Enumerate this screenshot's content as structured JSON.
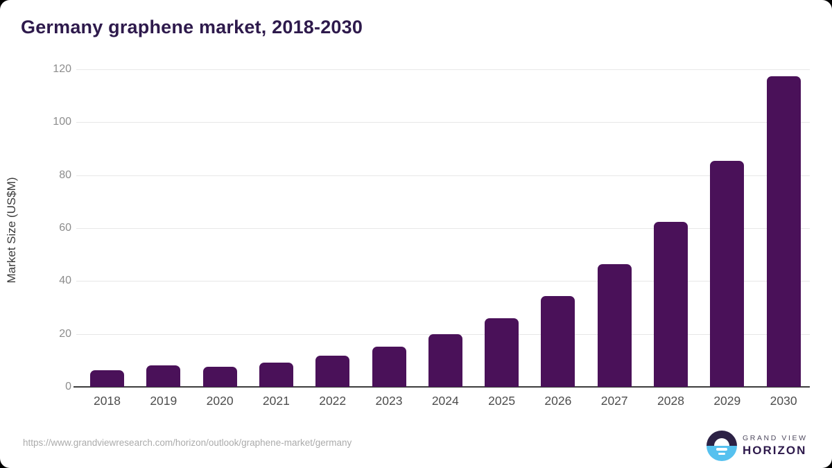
{
  "title": "Germany graphene market, 2018-2030",
  "colors": {
    "bar": "#4a1159",
    "title": "#2e1a4c",
    "grid": "#e7e7e7",
    "axis": "#3c3c3c",
    "tick_label": "#8c8c8c",
    "x_label": "#4d4d4d",
    "url": "#ababab",
    "logo_dark": "#2c2145",
    "logo_blue": "#56c1ef"
  },
  "chart_data": {
    "type": "bar",
    "title": "Germany graphene market, 2018-2030",
    "categories": [
      "2018",
      "2019",
      "2020",
      "2021",
      "2022",
      "2023",
      "2024",
      "2025",
      "2026",
      "2027",
      "2028",
      "2029",
      "2030"
    ],
    "values": [
      6.3,
      8.2,
      7.6,
      9.2,
      11.7,
      15.2,
      19.9,
      26.0,
      34.4,
      46.5,
      62.4,
      85.4,
      117.3
    ],
    "xlabel": "",
    "ylabel": "Market Size (US$M)",
    "ylim": [
      0,
      120
    ],
    "yticks": [
      0,
      20,
      40,
      60,
      80,
      100,
      120
    ],
    "grid": true,
    "legend_position": "none",
    "bar_color": "#4a1159"
  },
  "footer": {
    "source_url": "https://www.grandviewresearch.com/horizon/outlook/graphene-market/germany",
    "logo": {
      "line1": "GRAND VIEW",
      "line2": "HORIZON"
    }
  }
}
